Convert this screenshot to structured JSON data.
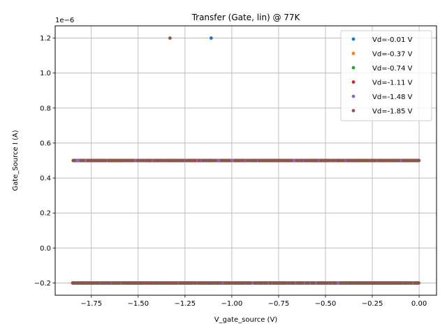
{
  "chart_data": {
    "type": "scatter",
    "title": "Transfer (Gate, lin) @ 77K",
    "xlabel": "V_gate_source (V)",
    "ylabel": "Gate_Source I (A)",
    "y_offset_text": "1e−6",
    "xlim": [
      -1.943,
      0.093
    ],
    "ylim": [
      -0.27,
      1.27
    ],
    "y_scale_factor": "1e-6",
    "grid": true,
    "legend_position": "top-right",
    "x_ticks": [
      -1.75,
      -1.5,
      -1.25,
      -1.0,
      -0.75,
      -0.5,
      -0.25,
      0.0
    ],
    "x_tick_labels": [
      "−1.75",
      "−1.50",
      "−1.25",
      "−1.00",
      "−0.75",
      "−0.50",
      "−0.25",
      "0.00"
    ],
    "y_ticks": [
      -0.2,
      0.0,
      0.2,
      0.4,
      0.6,
      0.8,
      1.0,
      1.2
    ],
    "y_tick_labels": [
      "−0.2",
      "0.0",
      "0.2",
      "0.4",
      "0.6",
      "0.8",
      "1.0",
      "1.2"
    ],
    "series": [
      {
        "name": "Vd=-0.01 V",
        "color": "#1f77b4",
        "x_range": [
          -1.85,
          0.0
        ],
        "level_values": [
          -0.2,
          0.5
        ],
        "outliers": [
          {
            "x": -1.11,
            "y": 1.2
          }
        ]
      },
      {
        "name": "Vd=-0.37 V",
        "color": "#ff7f0e",
        "x_range": [
          -1.85,
          0.0
        ],
        "level_values": [
          -0.2,
          0.5
        ],
        "outliers": []
      },
      {
        "name": "Vd=-0.74 V",
        "color": "#2ca02c",
        "x_range": [
          -1.85,
          0.0
        ],
        "level_values": [
          -0.2,
          0.5
        ],
        "outliers": []
      },
      {
        "name": "Vd=-1.11 V",
        "color": "#d62728",
        "x_range": [
          -1.85,
          0.0
        ],
        "level_values": [
          -0.2,
          0.5
        ],
        "outliers": []
      },
      {
        "name": "Vd=-1.48 V",
        "color": "#9467bd",
        "x_range": [
          -1.85,
          0.0
        ],
        "level_values": [
          -0.2,
          0.5
        ],
        "outliers": []
      },
      {
        "name": "Vd=-1.85 V",
        "color": "#8c564b",
        "x_range": [
          -1.85,
          0.0
        ],
        "level_values": [
          -0.2,
          0.5
        ],
        "outliers": [
          {
            "x": -1.33,
            "y": 1.2
          }
        ]
      }
    ]
  }
}
